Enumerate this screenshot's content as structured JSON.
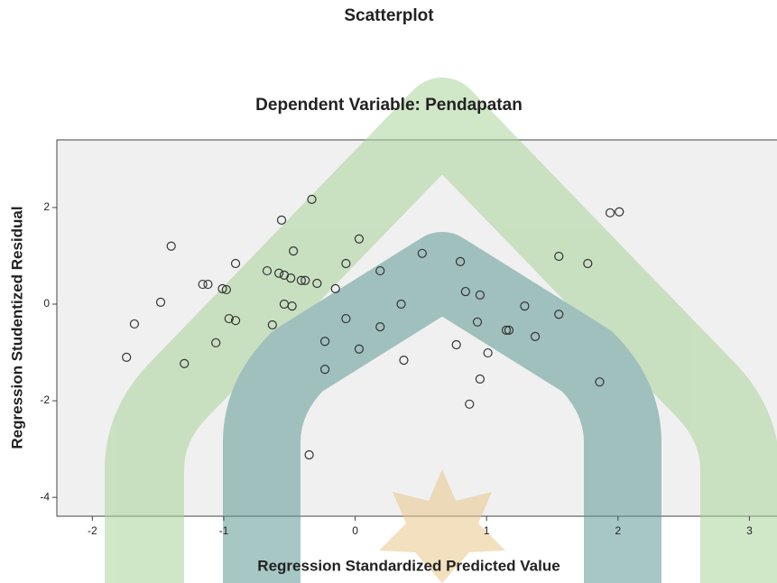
{
  "chart_data": {
    "type": "scatter",
    "title": "Scatterplot",
    "subtitle": "Dependent Variable: Pendapatan",
    "x_label": "Regression Standardized Predicted Value",
    "y_label": "Regression Studentized Residual",
    "xlim": [
      -2.27,
      3.21
    ],
    "ylim": [
      -4.39,
      3.4
    ],
    "xticks": [
      -2,
      -1,
      0,
      1,
      2,
      3
    ],
    "yticks": [
      -4,
      -2,
      0,
      2
    ],
    "marker_color": "#333333",
    "background": "#f0f0f0",
    "x": [
      -1.74,
      -1.68,
      -1.48,
      -1.4,
      -1.3,
      -1.16,
      -1.12,
      -1.06,
      -1.01,
      -0.98,
      -0.96,
      -0.91,
      -0.91,
      -0.67,
      -0.63,
      -0.58,
      -0.56,
      -0.54,
      -0.54,
      -0.49,
      -0.48,
      -0.47,
      -0.41,
      -0.38,
      -0.35,
      -0.33,
      -0.29,
      -0.23,
      -0.23,
      -0.15,
      -0.07,
      -0.07,
      0.03,
      0.03,
      0.19,
      0.19,
      0.35,
      0.37,
      0.51,
      0.77,
      0.8,
      0.84,
      0.87,
      0.93,
      0.95,
      0.95,
      1.01,
      1.15,
      1.17,
      1.29,
      1.37,
      1.55,
      1.55,
      1.77,
      1.86,
      1.94,
      2.01
    ],
    "values": [
      -1.1,
      -0.41,
      0.04,
      1.2,
      -1.23,
      0.41,
      0.41,
      -0.8,
      0.32,
      0.3,
      -0.3,
      -0.34,
      0.84,
      0.69,
      -0.43,
      0.64,
      1.74,
      0.6,
      0.0,
      0.54,
      -0.04,
      1.1,
      0.49,
      0.49,
      -3.12,
      2.17,
      0.43,
      -0.77,
      -1.35,
      0.32,
      0.84,
      -0.3,
      1.35,
      -0.93,
      0.69,
      -0.47,
      0.0,
      -1.16,
      1.05,
      -0.84,
      0.88,
      0.26,
      -2.07,
      -0.37,
      0.19,
      -1.55,
      -1.01,
      -0.54,
      -0.54,
      -0.04,
      -0.67,
      0.99,
      -0.21,
      0.84,
      -1.61,
      1.89,
      1.91
    ]
  }
}
